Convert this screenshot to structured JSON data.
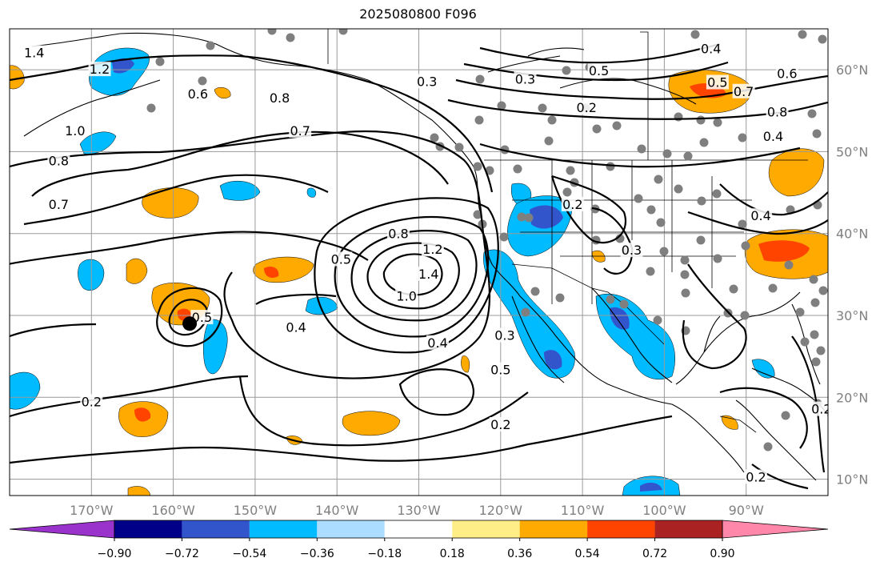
{
  "title": "2025080800 F096",
  "map": {
    "lon_range": [
      -180,
      -80
    ],
    "lat_range": [
      8,
      65
    ],
    "lon_ticks": [
      {
        "lon": -170,
        "label": "170°W"
      },
      {
        "lon": -160,
        "label": "160°W"
      },
      {
        "lon": -150,
        "label": "150°W"
      },
      {
        "lon": -140,
        "label": "140°W"
      },
      {
        "lon": -130,
        "label": "130°W"
      },
      {
        "lon": -120,
        "label": "120°W"
      },
      {
        "lon": -110,
        "label": "110°W"
      },
      {
        "lon": -100,
        "label": "100°W"
      },
      {
        "lon": -90,
        "label": "90°W"
      }
    ],
    "lat_ticks": [
      {
        "lat": 60,
        "label": "60°N"
      },
      {
        "lat": 50,
        "label": "50°N"
      },
      {
        "lat": 40,
        "label": "40°N"
      },
      {
        "lat": 30,
        "label": "30°N"
      },
      {
        "lat": 20,
        "label": "20°N"
      },
      {
        "lat": 10,
        "label": "10°N"
      }
    ],
    "gridlines": true,
    "marker_dot": {
      "lon": -158,
      "lat": 29
    }
  },
  "colorbar": {
    "ticks": [
      "−0.90",
      "−0.72",
      "−0.54",
      "−0.36",
      "−0.18",
      "0.18",
      "0.36",
      "0.54",
      "0.72",
      "0.90"
    ],
    "colors": [
      "#9933cc",
      "#000088",
      "#3355cc",
      "#00bbff",
      "#aaddff",
      "#ffffff",
      "#ffee88",
      "#ffaa00",
      "#ff4400",
      "#aa2222",
      "#ff88aa"
    ],
    "extend": "both"
  },
  "contour_labels": [
    {
      "text": "1.4",
      "lon": -177,
      "lat": 62
    },
    {
      "text": "1.2",
      "lon": -169,
      "lat": 60
    },
    {
      "text": "0.6",
      "lon": -157,
      "lat": 57
    },
    {
      "text": "0.8",
      "lon": -147,
      "lat": 56.5
    },
    {
      "text": "0.7",
      "lon": -144.5,
      "lat": 52.5
    },
    {
      "text": "0.8",
      "lon": -174,
      "lat": 48.8
    },
    {
      "text": "0.7",
      "lon": -174,
      "lat": 43.5
    },
    {
      "text": "1.0",
      "lon": -172,
      "lat": 52.5
    },
    {
      "text": "0.5",
      "lon": -139.5,
      "lat": 36.8
    },
    {
      "text": "0.8",
      "lon": -132.5,
      "lat": 39.9
    },
    {
      "text": "1.2",
      "lon": -128.3,
      "lat": 38
    },
    {
      "text": "1.4",
      "lon": -128.8,
      "lat": 35
    },
    {
      "text": "1.0",
      "lon": -131.5,
      "lat": 32.3
    },
    {
      "text": "0.4",
      "lon": -145,
      "lat": 28.5
    },
    {
      "text": "0.4",
      "lon": -127.7,
      "lat": 26.6
    },
    {
      "text": "0.5",
      "lon": -120,
      "lat": 23.3
    },
    {
      "text": "0.2",
      "lon": -170,
      "lat": 19.4
    },
    {
      "text": "0.2",
      "lon": -120,
      "lat": 16.6
    },
    {
      "text": "0.3",
      "lon": -129,
      "lat": 58.5
    },
    {
      "text": "0.3",
      "lon": -117,
      "lat": 58.8
    },
    {
      "text": "0.5",
      "lon": -108,
      "lat": 59.8
    },
    {
      "text": "0.2",
      "lon": -109.5,
      "lat": 55.3
    },
    {
      "text": "0.4",
      "lon": -94.3,
      "lat": 62.5
    },
    {
      "text": "0.6",
      "lon": -85,
      "lat": 59.5
    },
    {
      "text": "0.8",
      "lon": -86.2,
      "lat": 54.8
    },
    {
      "text": "0.4",
      "lon": -86.7,
      "lat": 51.8
    },
    {
      "text": "0.5",
      "lon": -93.5,
      "lat": 58.4
    },
    {
      "text": "0.7",
      "lon": -90.3,
      "lat": 57.3
    },
    {
      "text": "0.2",
      "lon": -111.2,
      "lat": 43.5
    },
    {
      "text": "0.3",
      "lon": -104,
      "lat": 37.9
    },
    {
      "text": "0.3",
      "lon": -119.5,
      "lat": 27.5
    },
    {
      "text": "0.2",
      "lon": -88.8,
      "lat": 10.2
    },
    {
      "text": "0.2",
      "lon": -80.8,
      "lat": 18.5
    },
    {
      "text": "0.5",
      "lon": -156.5,
      "lat": 29.7
    },
    {
      "text": "0.4",
      "lon": -88.2,
      "lat": 42.1
    }
  ]
}
